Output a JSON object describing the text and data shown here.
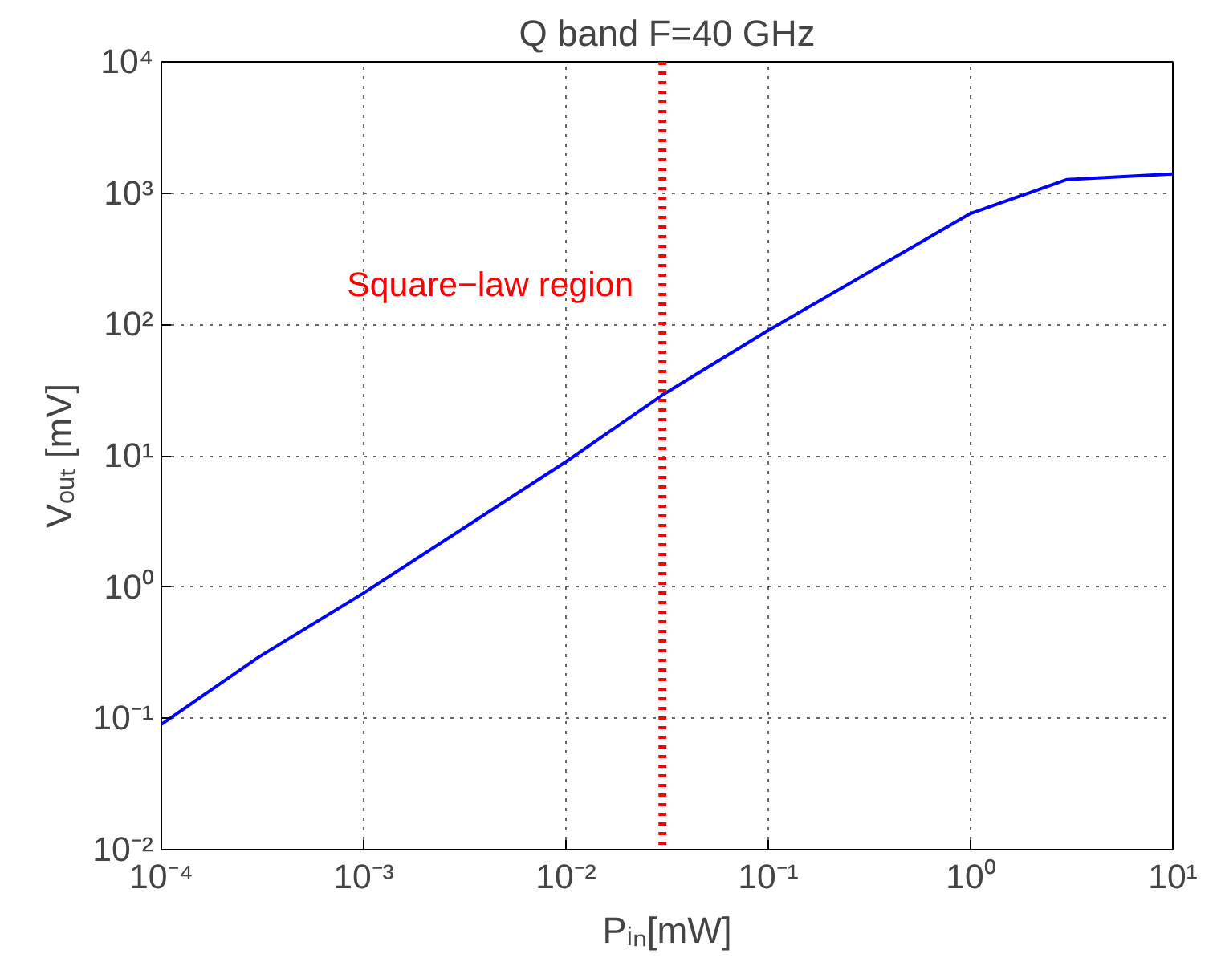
{
  "chart_data": {
    "type": "line",
    "title": "Q band F=40 GHz",
    "xlabel": "Pᵢₙ[mW]",
    "ylabel": "Vₒᵤₜ [mV]",
    "x": [
      0.0001,
      0.0003,
      0.001,
      0.01,
      0.03,
      0.1,
      1,
      3,
      10
    ],
    "series": [
      {
        "color": "#0000ff",
        "values": [
          0.09,
          0.29,
          0.9,
          9,
          29,
          90,
          700,
          1270,
          1400
        ]
      }
    ],
    "log": "xy",
    "xlim": [
      0.0001,
      10
    ],
    "ylim": [
      0.01,
      10000
    ],
    "xticks": [
      {
        "value": 0.0001,
        "label": "10⁻⁴"
      },
      {
        "value": 0.001,
        "label": "10⁻³"
      },
      {
        "value": 0.01,
        "label": "10⁻²"
      },
      {
        "value": 0.1,
        "label": "10⁻¹"
      },
      {
        "value": 1,
        "label": "10⁰"
      },
      {
        "value": 10,
        "label": "10¹"
      }
    ],
    "yticks": [
      {
        "value": 0.01,
        "label": "10⁻²"
      },
      {
        "value": 0.1,
        "label": "10⁻¹"
      },
      {
        "value": 1,
        "label": "10⁰"
      },
      {
        "value": 10,
        "label": "10¹"
      },
      {
        "value": 100,
        "label": "10²"
      },
      {
        "value": 1000,
        "label": "10³"
      },
      {
        "value": 10000,
        "label": "10⁴"
      }
    ],
    "ref_lines": [
      {
        "axis": "x",
        "value": 0.03,
        "label": "Square−law region",
        "color": "#ff0000",
        "line_style": "dotted"
      }
    ],
    "grid": true,
    "marker": "none",
    "line_style": "solid"
  }
}
